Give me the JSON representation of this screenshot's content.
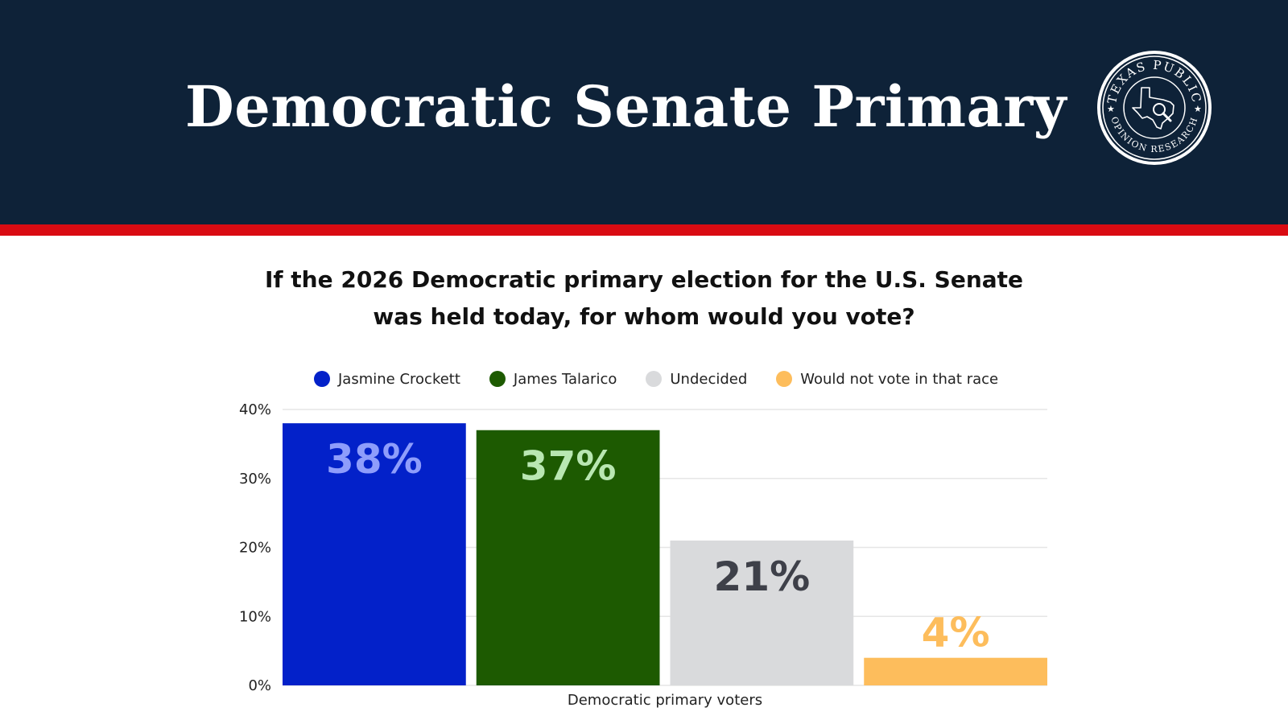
{
  "header": {
    "title": "Democratic Senate Primary",
    "logo_text_top": "TEXAS PUBLIC",
    "logo_text_bottom": "OPINION RESEARCH"
  },
  "chart_data": {
    "type": "bar",
    "title": "If the 2026 Democratic primary election for the U.S. Senate was held today, for whom would you vote?",
    "title_lines": [
      "If the 2026 Democratic primary election for the U.S. Senate",
      "was held today, for whom would you vote?"
    ],
    "categories": [
      "Democratic primary voters"
    ],
    "xlabel": "Democratic primary voters",
    "ylabel": "",
    "ylim": [
      0,
      40
    ],
    "yticks": [
      "0%",
      "10%",
      "20%",
      "30%",
      "40%"
    ],
    "grid": true,
    "legend_position": "top-center",
    "series": [
      {
        "name": "Jasmine Crockett",
        "values": [
          38
        ],
        "label": "38%",
        "color": "#0321c9",
        "label_color": "#8e9dfb"
      },
      {
        "name": "James Talarico",
        "values": [
          37
        ],
        "label": "37%",
        "color": "#1d5a01",
        "label_color": "#b9e7b2"
      },
      {
        "name": "Undecided",
        "values": [
          21
        ],
        "label": "21%",
        "color": "#d9dadc",
        "label_color": "#3e4049"
      },
      {
        "name": "Would not vote in that race",
        "values": [
          4
        ],
        "label": "4%",
        "color": "#fdbd5c",
        "label_color": "#fdbd5c"
      }
    ]
  },
  "colors": {
    "header_bg": "#0e2238",
    "accent_red": "#d90b12",
    "gridline": "#e6e6e6"
  }
}
